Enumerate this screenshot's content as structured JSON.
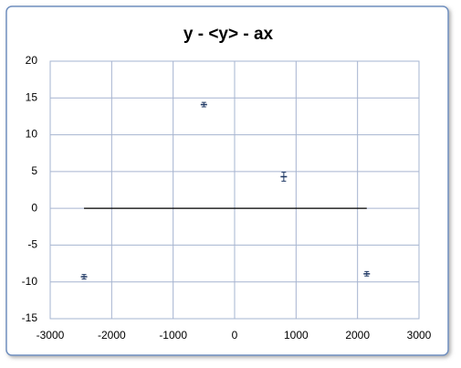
{
  "chart_data": {
    "type": "scatter",
    "title": "y - <y> - ax",
    "series": [
      {
        "x": [
          -2450,
          -500,
          800,
          2150
        ],
        "values": [
          -9.3,
          14.1,
          4.3,
          -8.9
        ],
        "errors": [
          0.3,
          0.3,
          0.6,
          0.3
        ],
        "color": "#1f3864",
        "style": "errorbar"
      },
      {
        "x": [
          -2450,
          2150
        ],
        "values": [
          0,
          0
        ],
        "color": "#000000",
        "style": "line"
      }
    ],
    "xlim": [
      -3000,
      3000
    ],
    "xticks": [
      -3000,
      -2000,
      -1000,
      0,
      1000,
      2000,
      3000
    ],
    "ylim": [
      -15,
      20
    ],
    "yticks": [
      -15,
      -10,
      -5,
      0,
      5,
      10,
      15,
      20
    ],
    "grid": true
  }
}
